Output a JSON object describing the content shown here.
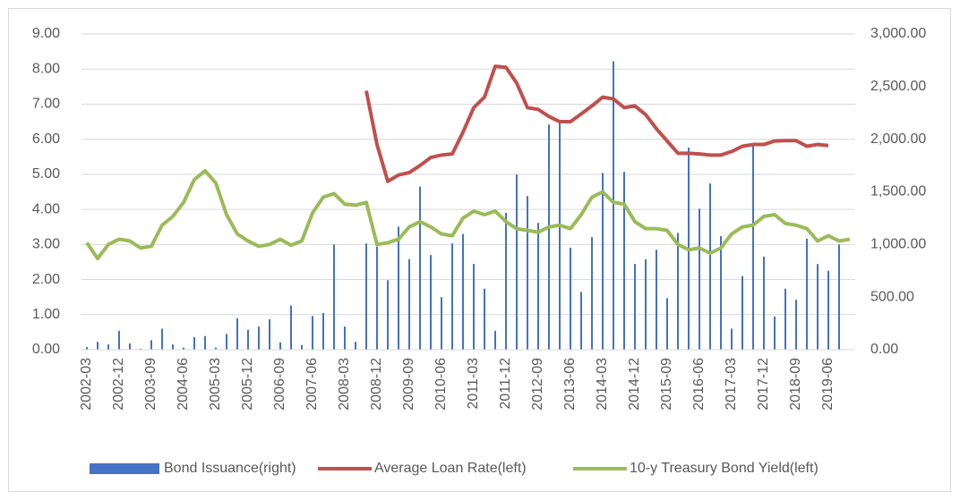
{
  "chart_data": {
    "type": "bar",
    "categories": [
      "2002-03",
      null,
      null,
      "2002-12",
      null,
      null,
      "2003-09",
      null,
      null,
      "2004-06",
      null,
      null,
      "2005-03",
      null,
      null,
      "2005-12",
      null,
      null,
      "2006-09",
      null,
      null,
      "2007-06",
      null,
      null,
      "2008-03",
      null,
      null,
      "2008-12",
      null,
      null,
      "2009-09",
      null,
      null,
      "2010-06",
      null,
      null,
      "2011-03",
      null,
      null,
      "2011-12",
      null,
      null,
      "2012-09",
      null,
      null,
      "2013-06",
      null,
      null,
      "2014-03",
      null,
      null,
      "2014-12",
      null,
      null,
      "2015-09",
      null,
      null,
      "2016-06",
      null,
      null,
      "2017-03",
      null,
      null,
      "2017-12",
      null,
      null,
      "2018-09",
      null,
      null,
      "2019-06",
      null,
      null
    ],
    "series": [
      {
        "name": "Bond Issuance(right)",
        "type": "bar",
        "axis": "y2",
        "color": "#4472c4",
        "values": [
          25,
          75,
          50,
          180,
          60,
          10,
          90,
          200,
          50,
          20,
          120,
          130,
          20,
          150,
          300,
          190,
          220,
          290,
          70,
          420,
          45,
          320,
          350,
          1000,
          220,
          75,
          1010,
          980,
          660,
          1170,
          860,
          1550,
          900,
          500,
          1010,
          1100,
          815,
          580,
          180,
          1300,
          1665,
          1460,
          1205,
          2140,
          2160,
          970,
          550,
          1070,
          1680,
          2740,
          1690,
          815,
          860,
          950,
          490,
          1110,
          1920,
          1340,
          1580,
          1080,
          200,
          700,
          1955,
          885,
          315,
          580,
          475,
          1055,
          815,
          750,
          1000,
          null
        ]
      },
      {
        "name": "Average Loan Rate(left)",
        "type": "line",
        "axis": "y",
        "color": "#c0504d",
        "values": [
          null,
          null,
          null,
          null,
          null,
          null,
          null,
          null,
          null,
          null,
          null,
          null,
          null,
          null,
          null,
          null,
          null,
          null,
          null,
          null,
          null,
          null,
          null,
          null,
          null,
          null,
          7.38,
          5.85,
          4.8,
          4.98,
          5.05,
          5.25,
          5.48,
          5.55,
          5.58,
          6.2,
          6.9,
          7.2,
          8.08,
          8.05,
          7.6,
          6.9,
          6.85,
          6.65,
          6.5,
          6.5,
          6.72,
          6.95,
          7.2,
          7.15,
          6.9,
          6.95,
          6.7,
          6.3,
          5.95,
          5.6,
          5.6,
          5.58,
          5.55,
          5.55,
          5.65,
          5.8,
          5.85,
          5.85,
          5.95,
          5.96,
          5.96,
          5.8,
          5.85,
          5.82,
          null,
          null
        ]
      },
      {
        "name": "10-y Treasury Bond Yield(left)",
        "type": "line",
        "axis": "y",
        "color": "#9bbb59",
        "values": [
          3.05,
          2.6,
          3.0,
          3.15,
          3.1,
          2.9,
          2.95,
          3.55,
          3.8,
          4.2,
          4.85,
          5.1,
          4.75,
          3.85,
          3.3,
          3.1,
          2.95,
          3.0,
          3.15,
          2.98,
          3.1,
          3.9,
          4.35,
          4.45,
          4.15,
          4.12,
          4.2,
          3.0,
          3.05,
          3.15,
          3.5,
          3.65,
          3.5,
          3.3,
          3.25,
          3.75,
          3.95,
          3.85,
          3.95,
          3.65,
          3.45,
          3.4,
          3.35,
          3.5,
          3.55,
          3.45,
          3.85,
          4.35,
          4.5,
          4.2,
          4.15,
          3.65,
          3.45,
          3.45,
          3.4,
          3.0,
          2.85,
          2.9,
          2.75,
          2.9,
          3.3,
          3.5,
          3.55,
          3.8,
          3.85,
          3.6,
          3.55,
          3.45,
          3.1,
          3.25,
          3.1,
          3.15
        ]
      }
    ],
    "ylim": [
      0,
      9
    ],
    "yticks": [
      {
        "value": 0,
        "label": "0.00"
      },
      {
        "value": 1,
        "label": "1.00"
      },
      {
        "value": 2,
        "label": "2.00"
      },
      {
        "value": 3,
        "label": "3.00"
      },
      {
        "value": 4,
        "label": "4.00"
      },
      {
        "value": 5,
        "label": "5.00"
      },
      {
        "value": 6,
        "label": "6.00"
      },
      {
        "value": 7,
        "label": "7.00"
      },
      {
        "value": 8,
        "label": "8.00"
      },
      {
        "value": 9,
        "label": "9.00"
      }
    ],
    "y2lim": [
      0,
      3000
    ],
    "y2ticks": [
      {
        "value": 0,
        "label": "0.00"
      },
      {
        "value": 500,
        "label": "500.00"
      },
      {
        "value": 1000,
        "label": "1,000.00"
      },
      {
        "value": 1500,
        "label": "1,500.00"
      },
      {
        "value": 2000,
        "label": "2,000.00"
      },
      {
        "value": 2500,
        "label": "2,500.00"
      },
      {
        "value": 3000,
        "label": "3,000.00"
      }
    ],
    "grid": true,
    "legend": "bottom"
  }
}
